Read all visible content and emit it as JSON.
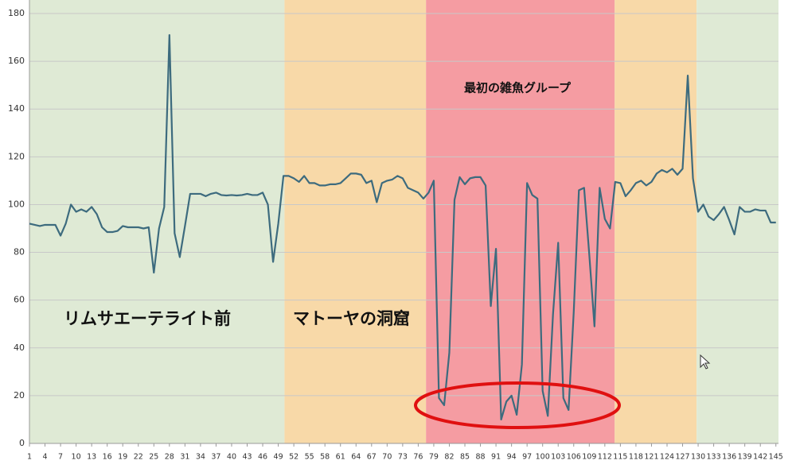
{
  "chart_data": {
    "type": "line",
    "x": [
      1,
      2,
      3,
      4,
      5,
      6,
      7,
      8,
      9,
      10,
      11,
      12,
      13,
      14,
      15,
      16,
      17,
      18,
      19,
      20,
      21,
      22,
      23,
      24,
      25,
      26,
      27,
      28,
      29,
      30,
      31,
      32,
      33,
      34,
      35,
      36,
      37,
      38,
      39,
      40,
      41,
      42,
      43,
      44,
      45,
      46,
      47,
      48,
      49,
      50,
      51,
      52,
      53,
      54,
      55,
      56,
      57,
      58,
      59,
      60,
      61,
      62,
      63,
      64,
      65,
      66,
      67,
      68,
      69,
      70,
      71,
      72,
      73,
      74,
      75,
      76,
      77,
      78,
      79,
      80,
      81,
      82,
      83,
      84,
      85,
      86,
      87,
      88,
      89,
      90,
      91,
      92,
      93,
      94,
      95,
      96,
      97,
      98,
      99,
      100,
      101,
      102,
      103,
      104,
      105,
      106,
      107,
      108,
      109,
      110,
      111,
      112,
      113,
      114,
      115,
      116,
      117,
      118,
      119,
      120,
      121,
      122,
      123,
      124,
      125,
      126,
      127,
      128,
      129,
      130,
      131,
      132,
      133,
      134,
      135,
      136,
      137,
      138,
      139,
      140,
      141,
      142,
      143,
      144,
      145
    ],
    "values": [
      92,
      91.5,
      91,
      91.5,
      91.5,
      91.5,
      87,
      92,
      100,
      97,
      98,
      97,
      99,
      96,
      90.5,
      88.5,
      88.5,
      89,
      91,
      90.5,
      90.5,
      90.5,
      90,
      90.5,
      71.5,
      90,
      99,
      171,
      88,
      78,
      91,
      104.5,
      104.5,
      104.5,
      103.5,
      104.5,
      105,
      104,
      103.8,
      104,
      103.8,
      104,
      104.5,
      104,
      104,
      105,
      100,
      76,
      92,
      112,
      112,
      111,
      109.5,
      112,
      109,
      109,
      108,
      108,
      108.5,
      108.5,
      109,
      111,
      113,
      113,
      112.5,
      109,
      110,
      101,
      109,
      110,
      110.5,
      112,
      111,
      107,
      106,
      105,
      102.5,
      105,
      110,
      19,
      16,
      38,
      102,
      111.5,
      108.5,
      111,
      111.5,
      111.5,
      108,
      57.5,
      81.5,
      10,
      17.5,
      20,
      12,
      33,
      109,
      104,
      102.5,
      22,
      11.5,
      54,
      84,
      19,
      14,
      55,
      106,
      107,
      79,
      49,
      107,
      94,
      90,
      109.5,
      109,
      103.5,
      106,
      109,
      110,
      108,
      109.5,
      113,
      114.5,
      113.5,
      115,
      112.5,
      115,
      154,
      111,
      97,
      100,
      95,
      93.5,
      96,
      99,
      93.5,
      87.5,
      99,
      97,
      97,
      98,
      97.5,
      97.5,
      92.5,
      92.5
    ],
    "color": "#3d6b7e",
    "xlim": [
      1,
      145.5
    ],
    "xticks": [
      1,
      4,
      7,
      10,
      13,
      16,
      19,
      22,
      25,
      28,
      31,
      34,
      37,
      40,
      43,
      46,
      49,
      52,
      55,
      58,
      61,
      64,
      67,
      70,
      73,
      76,
      79,
      82,
      85,
      88,
      91,
      94,
      97,
      100,
      103,
      106,
      109,
      112,
      115,
      118,
      121,
      124,
      127,
      130,
      133,
      136,
      139,
      142,
      145
    ],
    "ylim": [
      0,
      180
    ],
    "yticks": [
      0,
      20,
      40,
      60,
      80,
      100,
      120,
      140,
      160,
      180
    ],
    "grid": true,
    "bands": [
      {
        "from": 1,
        "to": 50.2,
        "color": "#dfead5",
        "label": "リムサエーテライト前"
      },
      {
        "from": 50.2,
        "to": 77.5,
        "color": "#f8d9a8",
        "label": "マトーヤの洞窟"
      },
      {
        "from": 77.5,
        "to": 113.9,
        "color": "#f59ca2",
        "label": "最初の雑魚グループ"
      },
      {
        "from": 113.9,
        "to": 129.7,
        "color": "#f8d9a8"
      },
      {
        "from": 129.7,
        "to": 145.5,
        "color": "#dfead5"
      }
    ]
  }
}
